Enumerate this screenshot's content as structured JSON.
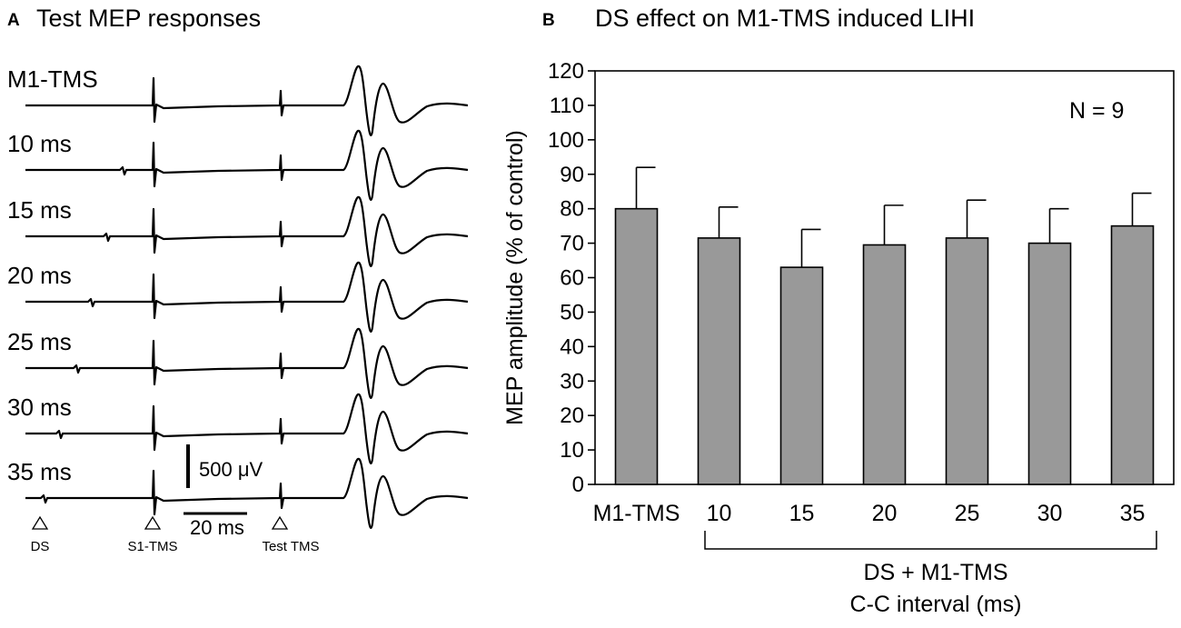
{
  "panel_a": {
    "letter": "A",
    "title": "Test MEP responses",
    "trace_labels": [
      "M1-TMS",
      "10 ms",
      "15 ms",
      "20 ms",
      "25 ms",
      "30 ms",
      "35 ms"
    ],
    "scale_amplitude": "500 μV",
    "scale_time": "20 ms",
    "markers": [
      "DS",
      "S1-TMS",
      "Test TMS"
    ]
  },
  "panel_b": {
    "letter": "B",
    "title": "DS effect on M1-TMS induced LIHI",
    "annotation": "N = 9",
    "bracket_label": "DS + M1-TMS",
    "xlabel": "C-C interval (ms)"
  },
  "chart_data": {
    "type": "bar",
    "title": "DS effect on M1-TMS induced LIHI",
    "categories": [
      "M1-TMS",
      "10",
      "15",
      "20",
      "25",
      "30",
      "35"
    ],
    "series": [
      {
        "name": "MEP amplitude",
        "values": [
          80,
          71.5,
          63,
          69.5,
          71.5,
          70,
          75
        ],
        "errors": [
          12,
          9,
          11,
          11.5,
          11,
          10,
          9.5
        ]
      }
    ],
    "ylabel": "MEP amplitude (% of control)",
    "xlabel": "C-C interval (ms)",
    "ylim": [
      0,
      120
    ],
    "yticks": [
      0,
      10,
      20,
      30,
      40,
      50,
      60,
      70,
      80,
      90,
      100,
      110,
      120
    ],
    "bar_color": "#999999"
  }
}
